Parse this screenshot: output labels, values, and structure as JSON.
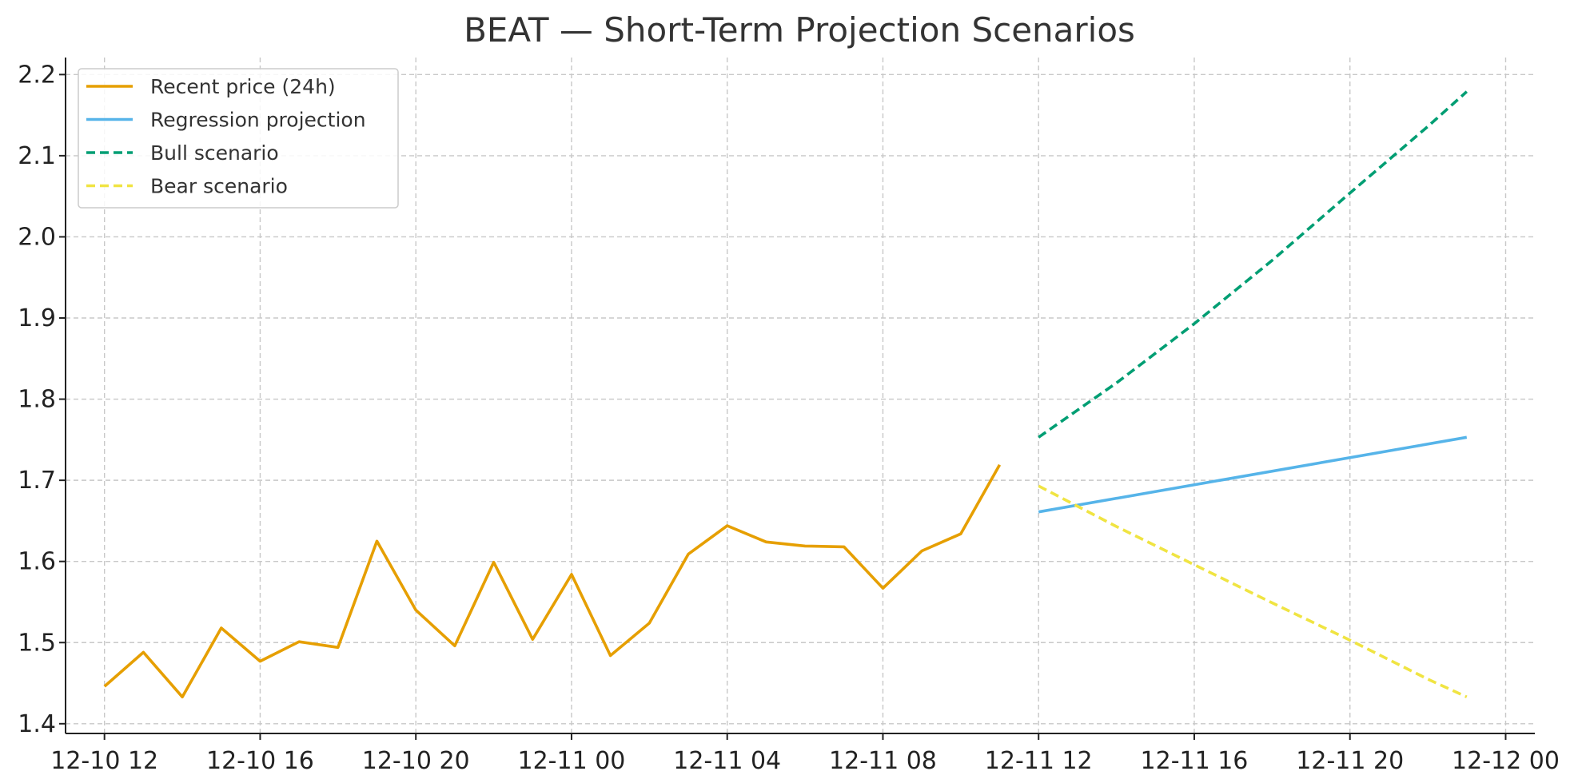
{
  "chart_data": {
    "type": "line",
    "title": "BEAT — Short-Term Projection Scenarios",
    "xlabel": "",
    "ylabel": "",
    "ylim": [
      1.4,
      2.2
    ],
    "yticks": [
      1.4,
      1.5,
      1.6,
      1.7,
      1.8,
      1.9,
      2.0,
      2.1,
      2.2
    ],
    "ytick_labels": [
      "1.4",
      "1.5",
      "1.6",
      "1.7",
      "1.8",
      "1.9",
      "2.0",
      "2.1",
      "2.2"
    ],
    "xlim": [
      "2024-12-10T11:00",
      "2024-12-12T00:45"
    ],
    "xticks": [
      "2024-12-10T12:00",
      "2024-12-10T16:00",
      "2024-12-10T20:00",
      "2024-12-11T00:00",
      "2024-12-11T04:00",
      "2024-12-11T08:00",
      "2024-12-11T12:00",
      "2024-12-11T16:00",
      "2024-12-11T20:00",
      "2024-12-12T00:00"
    ],
    "xtick_labels": [
      "12-10 12",
      "12-10 16",
      "12-10 20",
      "12-11 00",
      "12-11 04",
      "12-11 08",
      "12-11 12",
      "12-11 16",
      "12-11 20",
      "12-12 00"
    ],
    "grid": true,
    "legend_position": "top-left",
    "series": [
      {
        "name": "Recent price (24h)",
        "color": "#E69F00",
        "style": "solid",
        "x": [
          "2024-12-10T12:00",
          "2024-12-10T13:00",
          "2024-12-10T14:00",
          "2024-12-10T15:00",
          "2024-12-10T16:00",
          "2024-12-10T17:00",
          "2024-12-10T18:00",
          "2024-12-10T19:00",
          "2024-12-10T20:00",
          "2024-12-10T21:00",
          "2024-12-10T22:00",
          "2024-12-10T23:00",
          "2024-12-11T00:00",
          "2024-12-11T01:00",
          "2024-12-11T02:00",
          "2024-12-11T03:00",
          "2024-12-11T04:00",
          "2024-12-11T05:00",
          "2024-12-11T06:00",
          "2024-12-11T07:00",
          "2024-12-11T08:00",
          "2024-12-11T09:00",
          "2024-12-11T10:00",
          "2024-12-11T11:00"
        ],
        "y": [
          1.446,
          1.488,
          1.433,
          1.518,
          1.477,
          1.501,
          1.494,
          1.625,
          1.54,
          1.496,
          1.599,
          1.504,
          1.584,
          1.484,
          1.524,
          1.609,
          1.644,
          1.624,
          1.619,
          1.618,
          1.567,
          1.613,
          1.634,
          1.719
        ]
      },
      {
        "name": "Regression projection",
        "color": "#56B4E9",
        "style": "solid",
        "x": [
          "2024-12-11T12:00",
          "2024-12-11T23:00"
        ],
        "y": [
          1.661,
          1.753
        ]
      },
      {
        "name": "Bull scenario",
        "color": "#009E73",
        "style": "dashed",
        "x": [
          "2024-12-11T12:00",
          "2024-12-11T14:00",
          "2024-12-11T16:00",
          "2024-12-11T18:00",
          "2024-12-11T20:00",
          "2024-12-11T22:00",
          "2024-12-11T23:00"
        ],
        "y": [
          1.753,
          1.82,
          1.893,
          1.971,
          2.054,
          2.136,
          2.179
        ]
      },
      {
        "name": "Bear scenario",
        "color": "#F0E442",
        "style": "dashed",
        "x": [
          "2024-12-11T12:00",
          "2024-12-11T14:00",
          "2024-12-11T16:00",
          "2024-12-11T18:00",
          "2024-12-11T20:00",
          "2024-12-11T22:00",
          "2024-12-11T23:00"
        ],
        "y": [
          1.693,
          1.643,
          1.596,
          1.549,
          1.503,
          1.455,
          1.433
        ]
      }
    ]
  }
}
